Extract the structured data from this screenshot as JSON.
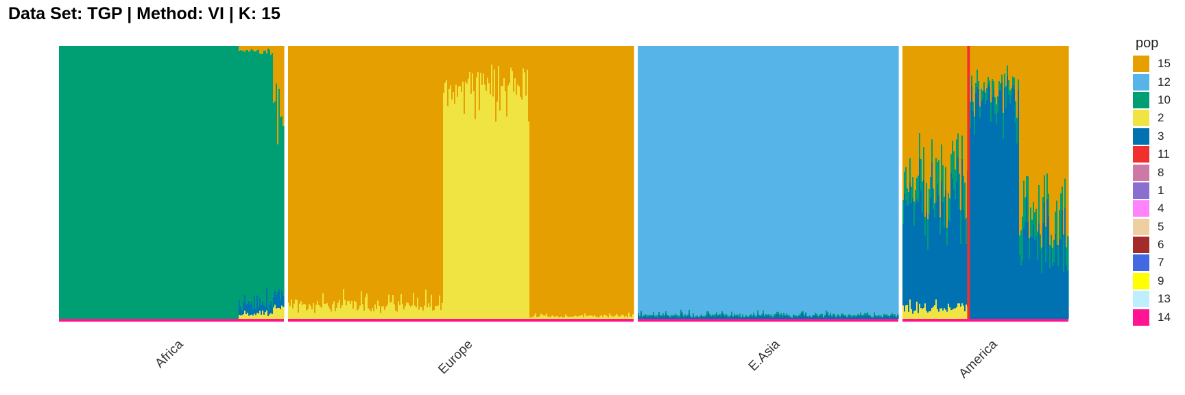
{
  "title": "Data Set: TGP | Method: VI | K: 15",
  "chart_data": {
    "type": "bar",
    "stacked": true,
    "title": "Data Set: TGP | Method: VI | K: 15",
    "xlabel": "",
    "ylabel": "",
    "ylim": [
      0,
      1
    ],
    "grid": false,
    "legend_title": "pop",
    "legend_position": "right",
    "legend": [
      {
        "name": "15",
        "color": "#E69F00"
      },
      {
        "name": "12",
        "color": "#56B4E9"
      },
      {
        "name": "10",
        "color": "#009E73"
      },
      {
        "name": "2",
        "color": "#F0E442"
      },
      {
        "name": "3",
        "color": "#0072B2"
      },
      {
        "name": "11",
        "color": "#F22F2F"
      },
      {
        "name": "8",
        "color": "#CC79A7"
      },
      {
        "name": "1",
        "color": "#8B6FD0"
      },
      {
        "name": "4",
        "color": "#FF83FA"
      },
      {
        "name": "5",
        "color": "#EECFA1"
      },
      {
        "name": "6",
        "color": "#A52A2A"
      },
      {
        "name": "7",
        "color": "#4169E1"
      },
      {
        "name": "9",
        "color": "#FFFF00"
      },
      {
        "name": "13",
        "color": "#BFEFFF"
      },
      {
        "name": "14",
        "color": "#FF1493"
      }
    ],
    "panels": [
      {
        "label": "Africa",
        "segments": [
          {
            "from": 0.0,
            "to": 0.8,
            "mix": {
              "10": 1.0
            }
          },
          {
            "from": 0.8,
            "to": 0.95,
            "mix": {
              "10": 0.92,
              "3": 0.04,
              "2": 0.02,
              "15": 0.02
            }
          },
          {
            "from": 0.95,
            "to": 1.0,
            "mix": {
              "10": 0.68,
              "15": 0.22,
              "3": 0.06,
              "2": 0.04
            }
          }
        ]
      },
      {
        "label": "Europe",
        "segments": [
          {
            "from": 0.0,
            "to": 0.45,
            "mix": {
              "15": 0.95,
              "2": 0.05
            }
          },
          {
            "from": 0.45,
            "to": 0.7,
            "mix": {
              "2": 0.85,
              "15": 0.15
            }
          },
          {
            "from": 0.7,
            "to": 1.0,
            "mix": {
              "15": 0.99,
              "2": 0.01
            }
          }
        ]
      },
      {
        "label": "E.Asia",
        "segments": [
          {
            "from": 0.0,
            "to": 1.0,
            "mix": {
              "12": 0.985,
              "3": 0.01,
              "10": 0.005
            }
          }
        ]
      },
      {
        "label": "America",
        "segments": [
          {
            "from": 0.0,
            "to": 0.4,
            "mix": {
              "15": 0.48,
              "3": 0.38,
              "10": 0.1,
              "2": 0.04
            }
          },
          {
            "from": 0.4,
            "to": 0.7,
            "mix": {
              "3": 0.8,
              "15": 0.15,
              "10": 0.05
            }
          },
          {
            "from": 0.7,
            "to": 1.0,
            "mix": {
              "15": 0.6,
              "3": 0.3,
              "10": 0.1
            }
          }
        ],
        "highlight": {
          "position": 0.39,
          "pop": "11"
        }
      }
    ]
  }
}
